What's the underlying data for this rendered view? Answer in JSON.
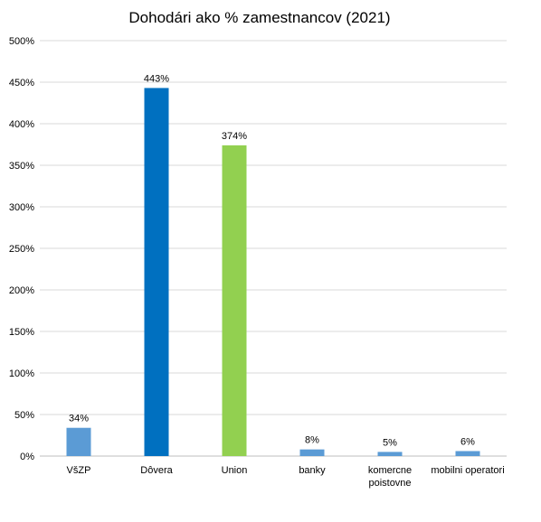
{
  "chart_data": {
    "type": "bar",
    "title": "Dohodári ako % zamestnancov (2021)",
    "xlabel": "",
    "ylabel": "",
    "ylim": [
      0,
      500
    ],
    "y_ticks": [
      0,
      50,
      100,
      150,
      200,
      250,
      300,
      350,
      400,
      450,
      500
    ],
    "tick_suffix": "%",
    "grid": true,
    "legend": "none",
    "categories": [
      {
        "label": [
          "VšZP"
        ],
        "value": 34,
        "value_label": "34%",
        "color": "#5b9bd5"
      },
      {
        "label": [
          "Dôvera"
        ],
        "value": 443,
        "value_label": "443%",
        "color": "#0070c0"
      },
      {
        "label": [
          "Union"
        ],
        "value": 374,
        "value_label": "374%",
        "color": "#92d050"
      },
      {
        "label": [
          "banky"
        ],
        "value": 8,
        "value_label": "8%",
        "color": "#5b9bd5"
      },
      {
        "label": [
          "komercne",
          "poistovne"
        ],
        "value": 5,
        "value_label": "5%",
        "color": "#5b9bd5"
      },
      {
        "label": [
          "mobilni operatori"
        ],
        "value": 6,
        "value_label": "6%",
        "color": "#5b9bd5"
      }
    ]
  }
}
